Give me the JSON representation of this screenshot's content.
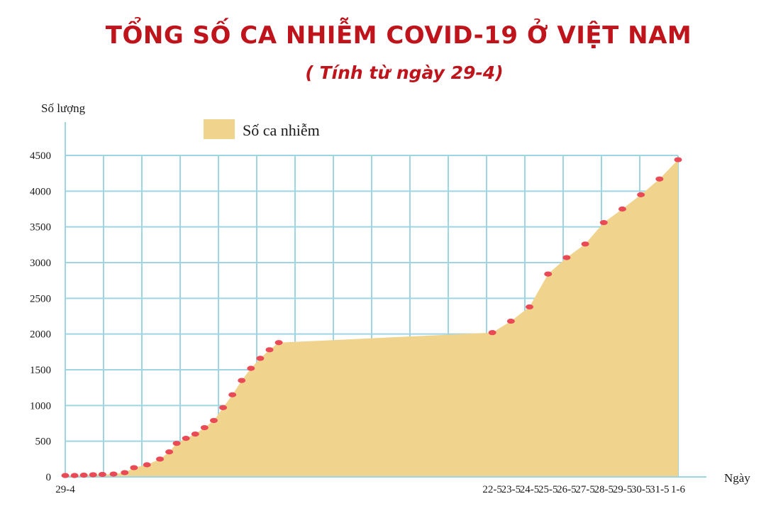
{
  "chart_data": {
    "type": "area",
    "title": "TỔNG SỐ CA NHIỄM COVID-19 Ở VIỆT NAM",
    "subtitle": "( Tính từ ngày 29-4)",
    "ylabel": "Số lượng",
    "xlabel": "Ngày",
    "ylim": [
      0,
      4500
    ],
    "yticks": [
      0,
      500,
      1000,
      1500,
      2000,
      2500,
      3000,
      3500,
      4000,
      4500
    ],
    "grid": true,
    "legend": {
      "label": "Số ca nhiễm",
      "position": "top-left"
    },
    "x_tick_labels": [
      {
        "label": "29-4",
        "x": 0
      },
      {
        "label": "22-5",
        "x": 23
      },
      {
        "label": "23-5",
        "x": 24
      },
      {
        "label": "24-5",
        "x": 25
      },
      {
        "label": "25-5",
        "x": 26
      },
      {
        "label": "26-5",
        "x": 27
      },
      {
        "label": "27-5",
        "x": 28
      },
      {
        "label": "28-5",
        "x": 29
      },
      {
        "label": "29-5",
        "x": 30
      },
      {
        "label": "30-5",
        "x": 31
      },
      {
        "label": "31-5",
        "x": 32
      },
      {
        "label": "1-6",
        "x": 33
      }
    ],
    "series": [
      {
        "name": "Số ca nhiễm",
        "points": [
          {
            "x": 0,
            "y": 20
          },
          {
            "x": 0.5,
            "y": 20
          },
          {
            "x": 1,
            "y": 25
          },
          {
            "x": 1.5,
            "y": 30
          },
          {
            "x": 2,
            "y": 35
          },
          {
            "x": 2.6,
            "y": 40
          },
          {
            "x": 3.2,
            "y": 60
          },
          {
            "x": 3.7,
            "y": 130
          },
          {
            "x": 4.4,
            "y": 170
          },
          {
            "x": 5.1,
            "y": 250
          },
          {
            "x": 5.6,
            "y": 350
          },
          {
            "x": 6,
            "y": 470
          },
          {
            "x": 6.5,
            "y": 540
          },
          {
            "x": 7,
            "y": 600
          },
          {
            "x": 7.5,
            "y": 690
          },
          {
            "x": 8,
            "y": 790
          },
          {
            "x": 8.5,
            "y": 970
          },
          {
            "x": 9,
            "y": 1150
          },
          {
            "x": 9.5,
            "y": 1350
          },
          {
            "x": 10,
            "y": 1520
          },
          {
            "x": 10.5,
            "y": 1660
          },
          {
            "x": 11,
            "y": 1780
          },
          {
            "x": 11.5,
            "y": 1880
          },
          {
            "x": 23,
            "y": 2020
          },
          {
            "x": 24,
            "y": 2180
          },
          {
            "x": 25,
            "y": 2380
          },
          {
            "x": 26,
            "y": 2840
          },
          {
            "x": 27,
            "y": 3070
          },
          {
            "x": 28,
            "y": 3260
          },
          {
            "x": 29,
            "y": 3560
          },
          {
            "x": 30,
            "y": 3750
          },
          {
            "x": 31,
            "y": 3950
          },
          {
            "x": 32,
            "y": 4170
          },
          {
            "x": 33,
            "y": 4440
          }
        ]
      }
    ],
    "colors": {
      "area": "#f0d48e",
      "marker": "#ea4a55",
      "grid": "#9fd5e3",
      "title": "#c0141c"
    }
  }
}
